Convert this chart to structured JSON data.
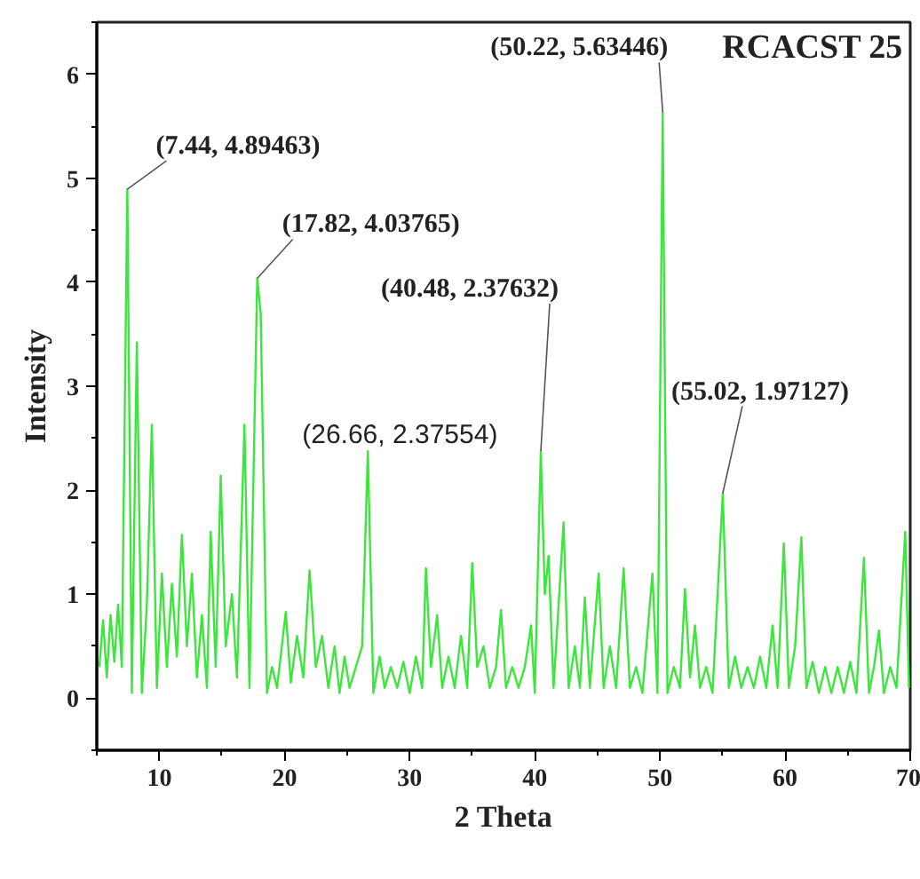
{
  "chart_data": {
    "type": "line",
    "title": "RCACST 25",
    "xlabel": "2 Theta",
    "ylabel": "Intensity",
    "xlim": [
      5,
      70
    ],
    "xticks": [
      10,
      20,
      30,
      40,
      50,
      60,
      70
    ],
    "ylim": [
      -0.5,
      6.5
    ],
    "yticks": [
      0,
      1,
      2,
      3,
      4,
      5,
      6
    ],
    "grid": false,
    "series": [
      {
        "color": "#3ce63c",
        "x": [
          5.2,
          5.5,
          5.8,
          6.1,
          6.4,
          6.7,
          7.0,
          7.44,
          7.8,
          8.2,
          8.6,
          9.0,
          9.4,
          9.8,
          10.2,
          10.6,
          11.0,
          11.4,
          11.8,
          12.2,
          12.6,
          13.0,
          13.4,
          13.8,
          14.1,
          14.5,
          14.9,
          15.3,
          15.8,
          16.2,
          16.8,
          17.2,
          17.82,
          18.1,
          18.6,
          19.0,
          19.4,
          20.1,
          20.5,
          21.0,
          21.5,
          22.0,
          22.5,
          23.0,
          23.5,
          24.0,
          24.4,
          24.8,
          25.2,
          25.7,
          26.2,
          26.66,
          27.1,
          27.6,
          28.0,
          28.5,
          29.0,
          29.5,
          30.0,
          30.5,
          31.0,
          31.3,
          31.7,
          32.2,
          32.6,
          33.1,
          33.6,
          34.1,
          34.6,
          35.0,
          35.4,
          35.9,
          36.4,
          36.9,
          37.3,
          37.7,
          38.2,
          38.7,
          39.2,
          39.7,
          40.0,
          40.48,
          40.8,
          41.1,
          41.5,
          42.3,
          42.7,
          43.2,
          43.6,
          44.0,
          44.4,
          45.1,
          45.5,
          46.0,
          46.5,
          47.1,
          47.6,
          48.1,
          48.6,
          49.4,
          49.8,
          50.22,
          50.6,
          51.1,
          51.6,
          52.0,
          52.4,
          52.8,
          53.2,
          53.7,
          54.2,
          55.02,
          55.5,
          56.0,
          56.5,
          57.0,
          57.5,
          58.0,
          58.5,
          59.0,
          59.4,
          59.9,
          60.3,
          60.8,
          61.3,
          61.7,
          62.2,
          62.7,
          63.2,
          63.7,
          64.2,
          64.7,
          65.2,
          65.7,
          66.3,
          66.7,
          67.1,
          67.5,
          67.9,
          68.4,
          68.9,
          69.6,
          69.9
        ],
        "values": [
          0.3,
          0.75,
          0.2,
          0.8,
          0.35,
          0.9,
          0.3,
          4.89463,
          0.05,
          3.42,
          0.05,
          0.9,
          2.63,
          0.1,
          1.2,
          0.3,
          1.1,
          0.4,
          1.57,
          0.5,
          1.2,
          0.2,
          0.8,
          0.1,
          1.6,
          0.3,
          2.14,
          0.5,
          1.0,
          0.2,
          2.63,
          0.1,
          4.03765,
          3.7,
          0.05,
          0.3,
          0.1,
          0.83,
          0.15,
          0.6,
          0.2,
          1.23,
          0.3,
          0.6,
          0.1,
          0.5,
          0.05,
          0.4,
          0.1,
          0.3,
          0.5,
          2.37554,
          0.05,
          0.4,
          0.1,
          0.3,
          0.1,
          0.35,
          0.05,
          0.4,
          0.1,
          1.25,
          0.3,
          0.8,
          0.1,
          0.4,
          0.1,
          0.6,
          0.1,
          1.3,
          0.3,
          0.5,
          0.1,
          0.3,
          0.85,
          0.1,
          0.3,
          0.1,
          0.3,
          0.7,
          0.05,
          2.37632,
          1.0,
          1.37,
          0.1,
          1.69,
          0.1,
          0.5,
          0.1,
          0.97,
          0.1,
          1.2,
          0.1,
          0.5,
          0.1,
          1.25,
          0.1,
          0.3,
          0.05,
          1.2,
          0.05,
          5.63446,
          0.05,
          0.3,
          0.1,
          1.05,
          0.2,
          0.7,
          0.1,
          0.3,
          0.05,
          1.97127,
          0.1,
          0.4,
          0.1,
          0.3,
          0.1,
          0.4,
          0.1,
          0.7,
          0.1,
          1.49,
          0.1,
          0.5,
          1.55,
          0.1,
          0.35,
          0.05,
          0.3,
          0.05,
          0.3,
          0.05,
          0.35,
          0.05,
          1.35,
          0.05,
          0.3,
          0.65,
          0.05,
          0.3,
          0.1,
          1.6,
          0.1
        ]
      }
    ],
    "annotations": [
      {
        "text": "(7.44, 4.89463)",
        "x": 7.44,
        "y": 4.89463
      },
      {
        "text": "(17.82, 4.03765)",
        "x": 17.82,
        "y": 4.03765
      },
      {
        "text": "(50.22, 5.63446)",
        "x": 50.22,
        "y": 5.63446
      },
      {
        "text": "(40.48, 2.37632)",
        "x": 40.48,
        "y": 2.37632
      },
      {
        "text": "(26.66, 2.37554)",
        "x": 26.66,
        "y": 2.37554
      },
      {
        "text": "(55.02, 1.97127)",
        "x": 55.02,
        "y": 1.97127
      }
    ]
  }
}
